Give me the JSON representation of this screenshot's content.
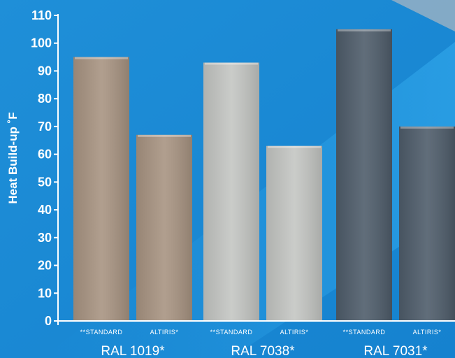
{
  "chart_data": {
    "type": "bar",
    "ylabel": "Heat Build-up ˚F",
    "xlabel": "",
    "ylim": [
      0,
      110
    ],
    "yticks": [
      0,
      10,
      20,
      30,
      40,
      50,
      60,
      70,
      80,
      90,
      100,
      110
    ],
    "groups": [
      {
        "name": "RAL 1019*",
        "color": "#a89482",
        "bars": [
          {
            "label": "**STANDARD",
            "value": 95
          },
          {
            "label": "ALTIRIS*",
            "value": 67
          }
        ]
      },
      {
        "name": "RAL 7038*",
        "color": "#c4c6c3",
        "bars": [
          {
            "label": "**STANDARD",
            "value": 93
          },
          {
            "label": "ALTIRIS*",
            "value": 63
          }
        ]
      },
      {
        "name": "RAL 7031*",
        "color": "#4f5d6b",
        "bars": [
          {
            "label": "**STANDARD",
            "value": 105
          },
          {
            "label": "ALTIRIS*",
            "value": 70
          }
        ]
      }
    ],
    "grid": false,
    "background_color": "#1a8fd6"
  }
}
